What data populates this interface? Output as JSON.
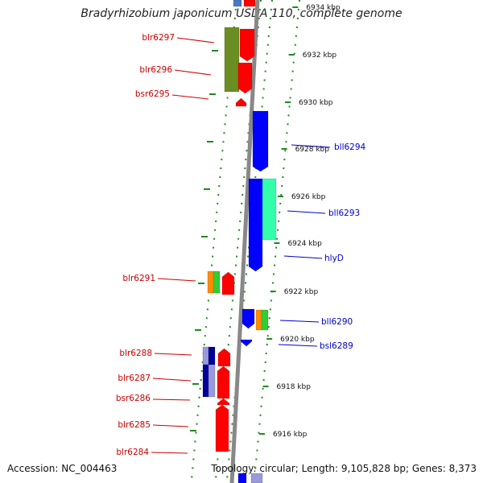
{
  "title": "Bradyrhizobium japonicum USDA 110, complete genome",
  "footer": {
    "accession": "Accession: NC_004463",
    "summary": "Topology: circular; Length: 9,105,828 bp; Genes: 8,373"
  },
  "colors": {
    "left_label": "#cc0000",
    "right_label": "#0000cc",
    "tick": "#1f8a1f",
    "backbone": "#888888",
    "gene_forward": "#ff0000",
    "gene_reverse": "#0000ff",
    "olive": "#6b8e23",
    "teal": "#33ffaa",
    "orange": "#ff8c00",
    "green": "#33cc33",
    "navy": "#000099",
    "lavender": "#9999dd"
  },
  "ruler": {
    "unit": "kbp",
    "ticks": [
      {
        "kbp": 6934,
        "label": "6934 kbp"
      },
      {
        "kbp": 6932,
        "label": "6932 kbp"
      },
      {
        "kbp": 6930,
        "label": "6930 kbp"
      },
      {
        "kbp": 6928,
        "label": "6928 kbp"
      },
      {
        "kbp": 6926,
        "label": "6926 kbp"
      },
      {
        "kbp": 6924,
        "label": "6924 kbp"
      },
      {
        "kbp": 6922,
        "label": "6922 kbp"
      },
      {
        "kbp": 6920,
        "label": "6920 kbp"
      },
      {
        "kbp": 6918,
        "label": "6918 kbp"
      },
      {
        "kbp": 6916,
        "label": "6916 kbp"
      }
    ]
  },
  "genes_forward": [
    {
      "label": "blr6297"
    },
    {
      "label": "blr6296"
    },
    {
      "label": "bsr6295"
    },
    {
      "label": "blr6291"
    },
    {
      "label": "blr6288"
    },
    {
      "label": "blr6287"
    },
    {
      "label": "bsr6286"
    },
    {
      "label": "blr6285"
    },
    {
      "label": "blr6284"
    }
  ],
  "genes_reverse": [
    {
      "label": "bll6294"
    },
    {
      "label": "bll6293"
    },
    {
      "label": "hlyD"
    },
    {
      "label": "bll6290"
    },
    {
      "label": "bsl6289"
    }
  ]
}
